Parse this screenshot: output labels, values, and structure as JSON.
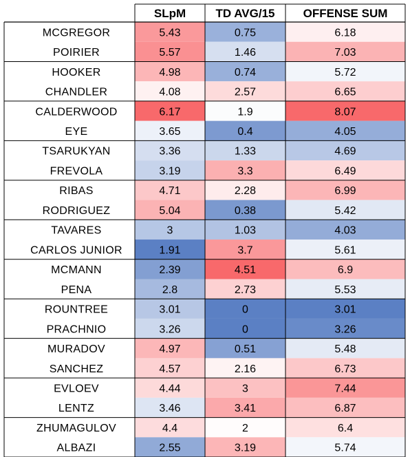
{
  "chart_data": {
    "type": "heatmap",
    "columns": [
      "SLpM",
      "TD AVG/15",
      "OFFENSE SUM"
    ],
    "rows": [
      {
        "name": "MCGREGOR",
        "values": [
          "5.43",
          "0.75",
          "6.18"
        ]
      },
      {
        "name": "POIRIER",
        "values": [
          "5.57",
          "1.46",
          "7.03"
        ]
      },
      {
        "name": "HOOKER",
        "values": [
          "4.98",
          "0.74",
          "5.72"
        ]
      },
      {
        "name": "CHANDLER",
        "values": [
          "4.08",
          "2.57",
          "6.65"
        ]
      },
      {
        "name": "CALDERWOOD",
        "values": [
          "6.17",
          "1.9",
          "8.07"
        ]
      },
      {
        "name": "EYE",
        "values": [
          "3.65",
          "0.4",
          "4.05"
        ]
      },
      {
        "name": "TSARUKYAN",
        "values": [
          "3.36",
          "1.33",
          "4.69"
        ]
      },
      {
        "name": "FREVOLA",
        "values": [
          "3.19",
          "3.3",
          "6.49"
        ]
      },
      {
        "name": "RIBAS",
        "values": [
          "4.71",
          "2.28",
          "6.99"
        ]
      },
      {
        "name": "RODRIGUEZ",
        "values": [
          "5.04",
          "0.38",
          "5.42"
        ]
      },
      {
        "name": "TAVARES",
        "values": [
          "3",
          "1.03",
          "4.03"
        ]
      },
      {
        "name": "CARLOS JUNIOR",
        "values": [
          "1.91",
          "3.7",
          "5.61"
        ]
      },
      {
        "name": "MCMANN",
        "values": [
          "2.39",
          "4.51",
          "6.9"
        ]
      },
      {
        "name": "PENA",
        "values": [
          "2.8",
          "2.73",
          "5.53"
        ]
      },
      {
        "name": "ROUNTREE",
        "values": [
          "3.01",
          "0",
          "3.01"
        ]
      },
      {
        "name": "PRACHNIO",
        "values": [
          "3.26",
          "0",
          "3.26"
        ]
      },
      {
        "name": "MURADOV",
        "values": [
          "4.97",
          "0.51",
          "5.48"
        ]
      },
      {
        "name": "SANCHEZ",
        "values": [
          "4.57",
          "2.16",
          "6.73"
        ]
      },
      {
        "name": "EVLOEV",
        "values": [
          "4.44",
          "3",
          "7.44"
        ]
      },
      {
        "name": "LENTZ",
        "values": [
          "3.46",
          "3.41",
          "6.87"
        ]
      },
      {
        "name": "ZHUMAGULOV",
        "values": [
          "4.4",
          "2",
          "6.4"
        ]
      },
      {
        "name": "ALBAZI",
        "values": [
          "2.55",
          "3.19",
          "5.74"
        ]
      }
    ],
    "color_scale": {
      "low": "#5b80c4",
      "mid": "#ffffff",
      "high": "#f8696b"
    }
  }
}
